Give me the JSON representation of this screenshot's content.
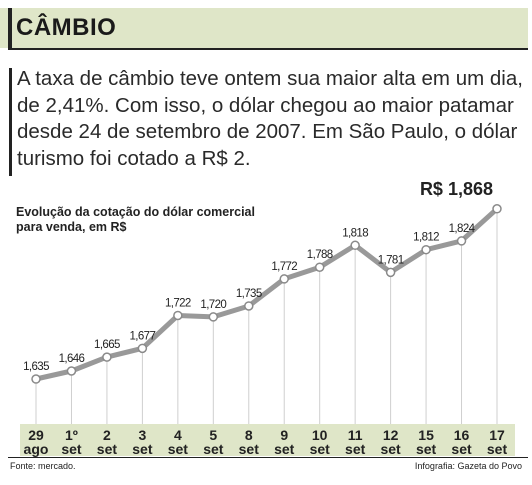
{
  "header": {
    "title": "CÂMBIO"
  },
  "lead": "A taxa de câmbio teve ontem sua maior alta em um dia, de 2,41%. Com isso, o dólar chegou ao maior patamar desde 24 de setembro de 2007. Em São Paulo, o dólar turismo foi cotado a R$ 2.",
  "footer": {
    "source": "Fonte: mercado.",
    "credit": "Infografia: Gazeta do Povo"
  },
  "chart_data": {
    "type": "line",
    "subtitle": "Evolução da cotação do dólar comercial para venda, em R$",
    "categories": [
      {
        "day": "29",
        "month": "ago"
      },
      {
        "day": "1º",
        "month": "set"
      },
      {
        "day": "2",
        "month": "set"
      },
      {
        "day": "3",
        "month": "set"
      },
      {
        "day": "4",
        "month": "set"
      },
      {
        "day": "5",
        "month": "set"
      },
      {
        "day": "8",
        "month": "set"
      },
      {
        "day": "9",
        "month": "set"
      },
      {
        "day": "10",
        "month": "set"
      },
      {
        "day": "11",
        "month": "set"
      },
      {
        "day": "12",
        "month": "set"
      },
      {
        "day": "15",
        "month": "set"
      },
      {
        "day": "16",
        "month": "set"
      },
      {
        "day": "17",
        "month": "set"
      }
    ],
    "values": [
      1.635,
      1.646,
      1.665,
      1.677,
      1.722,
      1.72,
      1.735,
      1.772,
      1.788,
      1.818,
      1.781,
      1.812,
      1.824,
      1.868
    ],
    "labels": [
      "1,635",
      "1,646",
      "1,665",
      "1,677",
      "1,722",
      "1,720",
      "1,735",
      "1,772",
      "1,788",
      "1,818",
      "1,781",
      "1,812",
      "1,824",
      "R$ 1,868"
    ],
    "ylim": [
      1.62,
      1.88
    ],
    "grid": "vertical",
    "colors": {
      "line": "#999999",
      "marker_fill": "#ffffff",
      "marker_stroke": "#8a8a8a",
      "gridline": "#cfcfcf",
      "axis_band": "#dfe6c8"
    }
  }
}
